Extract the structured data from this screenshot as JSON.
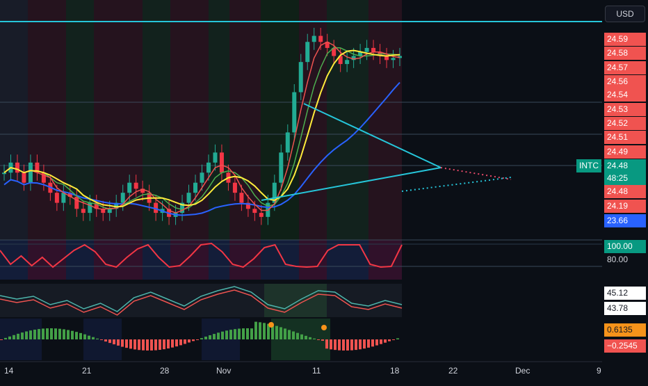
{
  "currency_button": "USD",
  "symbol": "INTC",
  "price_axis": {
    "labels": [
      "24.59",
      "24.58",
      "24.57",
      "24.56",
      "24.54",
      "24.53",
      "24.52",
      "24.51",
      "24.49"
    ],
    "current_price": "24.48",
    "countdown": "48:25",
    "ma_level_1": "24.48",
    "ma_level_2": "24.19",
    "ma_level_3": "23.66"
  },
  "panes": {
    "rsi_value": "100.00",
    "rsi_level": "80.00",
    "osc_value_1": "45.12",
    "osc_value_2": "43.78",
    "hist_value_1": "0.6135",
    "hist_value_2": "−0.2545"
  },
  "x_axis": [
    "14",
    "21",
    "28",
    "Nov",
    "11",
    "18",
    "22",
    "Dec",
    "9"
  ],
  "colors": {
    "up": "#22ab94",
    "down": "#f23645",
    "ma_blue": "#2962ff",
    "ma_yellow": "#ffeb3b",
    "ma_green": "#4caf50",
    "ma_red": "#ef5350",
    "trendline": "#26c6da"
  },
  "chart_data": {
    "type": "candlestick",
    "x_labels": [
      "14",
      "21",
      "28",
      "Nov",
      "11",
      "18",
      "22",
      "Dec",
      "9"
    ],
    "closes": [
      23.9,
      23.95,
      23.9,
      23.85,
      23.95,
      23.9,
      23.85,
      23.8,
      23.75,
      23.8,
      23.78,
      23.72,
      23.7,
      23.75,
      23.72,
      23.7,
      23.72,
      23.75,
      23.8,
      23.85,
      23.82,
      23.8,
      23.75,
      23.7,
      23.72,
      23.68,
      23.7,
      23.75,
      23.8,
      23.85,
      23.9,
      23.95,
      24.0,
      23.9,
      23.85,
      23.8,
      23.75,
      23.72,
      23.7,
      23.68,
      23.75,
      23.85,
      24.0,
      24.1,
      24.3,
      24.45,
      24.55,
      24.58,
      24.55,
      24.52,
      24.48,
      24.44,
      24.46,
      24.48,
      24.5,
      24.52,
      24.5,
      24.48,
      24.46,
      24.47,
      24.48
    ],
    "ylim": [
      23.6,
      24.62
    ]
  }
}
